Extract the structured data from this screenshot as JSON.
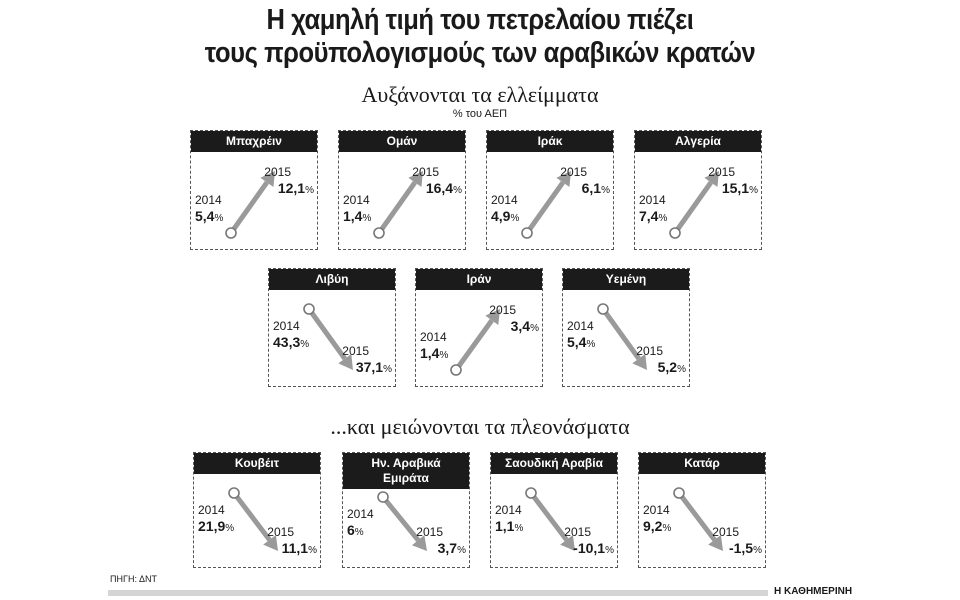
{
  "title": {
    "line1": "Η χαμηλή τιμή του πετρελαίου πιέζει",
    "line2": "τους προϋπολογισμούς των αραβικών κρατών"
  },
  "unit": "% του ΑΕΠ",
  "percent_sign": "%",
  "source": "ΠΗΓΗ: ΔΝΤ",
  "brand": "Η ΚΑΘΗΜΕΡΙΝΗ",
  "colors": {
    "arrow": "#9a9a9a",
    "header": "#1b1b1b",
    "circle_fill": "#ffffff"
  },
  "chart_data": [
    {
      "type": "line",
      "title": "Αυξάνονται τα ελλείμματα",
      "ylabel": "% του ΑΕΠ",
      "categories": [
        "2014",
        "2015"
      ],
      "series": [
        {
          "name": "Μπαχρέιν",
          "values": [
            5.4,
            12.1
          ]
        },
        {
          "name": "Ομάν",
          "values": [
            1.4,
            16.4
          ]
        },
        {
          "name": "Ιράκ",
          "values": [
            4.9,
            6.1
          ]
        },
        {
          "name": "Αλγερία",
          "values": [
            7.4,
            15.1
          ]
        },
        {
          "name": "Λιβύη",
          "values": [
            43.3,
            37.1
          ]
        },
        {
          "name": "Ιράν",
          "values": [
            1.4,
            3.4
          ]
        },
        {
          "name": "Υεμένη",
          "values": [
            5.4,
            5.2
          ]
        }
      ]
    },
    {
      "type": "line",
      "title": "...και μειώνονται τα πλεονάσματα",
      "ylabel": "% του ΑΕΠ",
      "categories": [
        "2014",
        "2015"
      ],
      "series": [
        {
          "name": "Κουβέιτ",
          "values": [
            21.9,
            11.1
          ]
        },
        {
          "name": "Ην. Αραβικά Εμιράτα",
          "values": [
            6,
            3.7
          ]
        },
        {
          "name": "Σαουδική Αραβία",
          "values": [
            1.1,
            -10.1
          ]
        },
        {
          "name": "Κατάρ",
          "values": [
            9.2,
            -1.5
          ]
        }
      ]
    }
  ]
}
